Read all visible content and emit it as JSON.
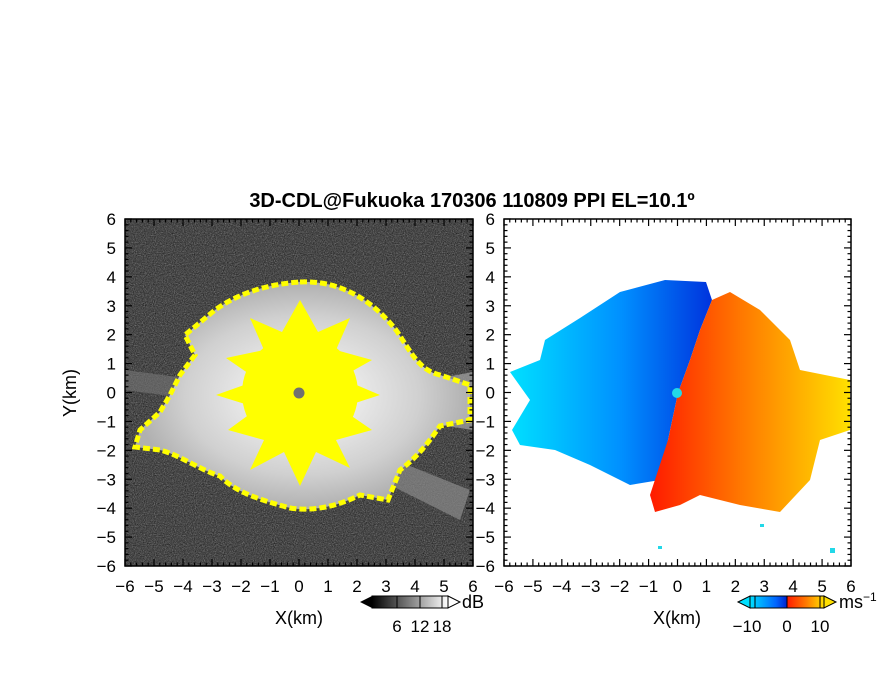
{
  "chart_data": [
    {
      "type": "heatmap",
      "panel": "left",
      "title": "3D-CDL@Fukuoka 170306 110809 PPI EL=10.1º",
      "xlabel": "X(km)",
      "ylabel": "Y(km)",
      "xlim": [
        -6,
        6
      ],
      "ylim": [
        -6,
        6
      ],
      "xticks": [
        "−6",
        "−5",
        "−4",
        "−3",
        "−2",
        "−1",
        "0",
        "1",
        "2",
        "3",
        "4",
        "5",
        "6"
      ],
      "yticks": [
        "6",
        "5",
        "4",
        "3",
        "2",
        "1",
        "0",
        "−1",
        "−2",
        "−3",
        "−4",
        "−5",
        "−6"
      ],
      "background": "grayscale noise",
      "highlight_color": "#ffff00",
      "colorbar": {
        "unit": "dB",
        "ticks": [
          "6",
          "12",
          "18"
        ],
        "colors": [
          "#000000",
          "#ffffff"
        ]
      }
    },
    {
      "type": "heatmap",
      "panel": "right",
      "xlabel": "X(km)",
      "xlim": [
        -6,
        6
      ],
      "ylim": [
        -6,
        6
      ],
      "xticks": [
        "−6",
        "−5",
        "−4",
        "−3",
        "−2",
        "−1",
        "0",
        "1",
        "2",
        "3",
        "4",
        "5",
        "6"
      ],
      "yticks": [
        "6",
        "5",
        "4",
        "3",
        "2",
        "1",
        "0",
        "−1",
        "−2",
        "−3",
        "−4",
        "−5",
        "−6"
      ],
      "colorbar": {
        "unit": "ms",
        "unit_exponent": "−1",
        "ticks": [
          "−10",
          "0",
          "10"
        ],
        "colors": [
          "#00e0ff",
          "#0066ff",
          "#0033dd",
          "#ff2200",
          "#ff7700",
          "#ffdd00"
        ]
      }
    }
  ]
}
